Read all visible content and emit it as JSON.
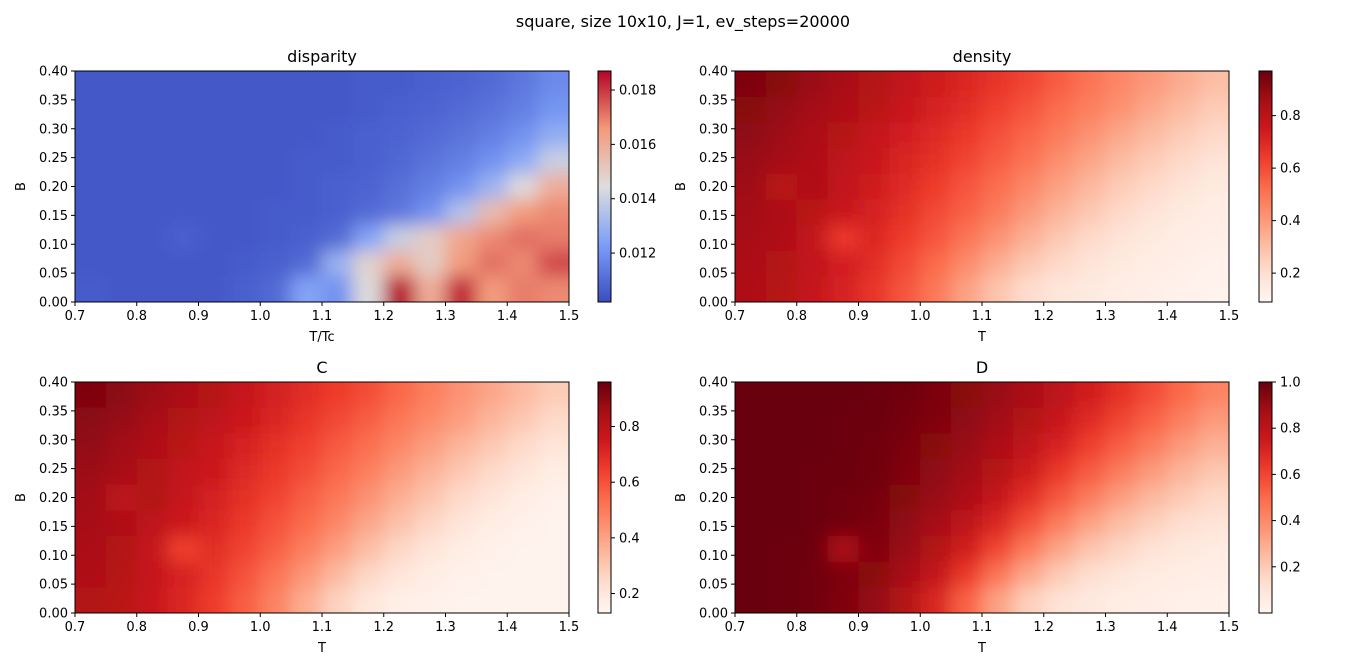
{
  "suptitle": "square, size 10x10, J=1, ev_steps=20000",
  "chart_data": [
    {
      "type": "heatmap",
      "id": "disparity",
      "title": "disparity",
      "xlabel": "T/Tc",
      "ylabel": "B",
      "xlim": [
        0.7,
        1.5
      ],
      "ylim": [
        0.0,
        0.4
      ],
      "xticks": [
        "0.7",
        "0.8",
        "0.9",
        "1.0",
        "1.1",
        "1.2",
        "1.3",
        "1.4",
        "1.5"
      ],
      "yticks": [
        "0.00",
        "0.05",
        "0.10",
        "0.15",
        "0.20",
        "0.25",
        "0.30",
        "0.35",
        "0.40"
      ],
      "colormap": "coolwarm",
      "colorbar": {
        "vmin": 0.0102,
        "vmax": 0.0187,
        "ticks": [
          "0.012",
          "0.014",
          "0.016",
          "0.018"
        ]
      },
      "description_grid_rows_top_to_bottom": "B from 0.40 down to 0.00, T/Tc from 0.7 to 1.5",
      "values": [
        [
          0.0105,
          0.0105,
          0.0105,
          0.0105,
          0.0105,
          0.0105,
          0.0105,
          0.0105,
          0.0105,
          0.0106,
          0.0106,
          0.0107,
          0.0108,
          0.011,
          0.0113,
          0.0118
        ],
        [
          0.0105,
          0.0105,
          0.0105,
          0.0105,
          0.0105,
          0.0105,
          0.0105,
          0.0105,
          0.0105,
          0.0106,
          0.0107,
          0.0108,
          0.011,
          0.0112,
          0.0115,
          0.0121
        ],
        [
          0.0105,
          0.0105,
          0.0105,
          0.0105,
          0.0105,
          0.0105,
          0.0105,
          0.0105,
          0.0106,
          0.0107,
          0.0108,
          0.011,
          0.0112,
          0.0115,
          0.012,
          0.0128
        ],
        [
          0.0105,
          0.0105,
          0.0105,
          0.0105,
          0.0105,
          0.0105,
          0.0105,
          0.0106,
          0.0106,
          0.0107,
          0.0109,
          0.0112,
          0.0115,
          0.012,
          0.0127,
          0.014
        ],
        [
          0.0105,
          0.0105,
          0.0105,
          0.0105,
          0.0105,
          0.0105,
          0.0105,
          0.0106,
          0.0107,
          0.0108,
          0.0111,
          0.0115,
          0.012,
          0.013,
          0.0145,
          0.016
        ],
        [
          0.0105,
          0.0105,
          0.0105,
          0.0105,
          0.0105,
          0.0105,
          0.0106,
          0.0106,
          0.0107,
          0.011,
          0.0113,
          0.012,
          0.0135,
          0.0155,
          0.0165,
          0.0168
        ],
        [
          0.0105,
          0.0105,
          0.0105,
          0.0107,
          0.0105,
          0.0105,
          0.0106,
          0.0107,
          0.011,
          0.0125,
          0.014,
          0.015,
          0.0162,
          0.0168,
          0.0172,
          0.017
        ],
        [
          0.0105,
          0.0105,
          0.0105,
          0.0105,
          0.0105,
          0.0106,
          0.0107,
          0.011,
          0.013,
          0.0148,
          0.016,
          0.015,
          0.0165,
          0.0172,
          0.0168,
          0.0178
        ],
        [
          0.0106,
          0.0105,
          0.0105,
          0.0105,
          0.0105,
          0.0107,
          0.011,
          0.0125,
          0.012,
          0.0145,
          0.0187,
          0.016,
          0.0183,
          0.0165,
          0.017,
          0.0168
        ]
      ]
    },
    {
      "type": "heatmap",
      "id": "density",
      "title": "density",
      "xlabel": "T",
      "ylabel": "B",
      "xlim": [
        0.7,
        1.5
      ],
      "ylim": [
        0.0,
        0.4
      ],
      "xticks": [
        "0.7",
        "0.8",
        "0.9",
        "1.0",
        "1.1",
        "1.2",
        "1.3",
        "1.4",
        "1.5"
      ],
      "yticks": [
        "0.00",
        "0.05",
        "0.10",
        "0.15",
        "0.20",
        "0.25",
        "0.30",
        "0.35",
        "0.40"
      ],
      "colormap": "Reds",
      "colorbar": {
        "vmin": 0.09,
        "vmax": 0.97,
        "ticks": [
          "0.2",
          "0.4",
          "0.6",
          "0.8"
        ]
      },
      "values": [
        [
          0.93,
          0.91,
          0.88,
          0.85,
          0.82,
          0.78,
          0.74,
          0.7,
          0.66,
          0.62,
          0.56,
          0.5,
          0.45,
          0.4,
          0.35,
          0.3
        ],
        [
          0.91,
          0.89,
          0.86,
          0.83,
          0.8,
          0.76,
          0.72,
          0.68,
          0.63,
          0.58,
          0.52,
          0.47,
          0.42,
          0.36,
          0.31,
          0.26
        ],
        [
          0.9,
          0.87,
          0.84,
          0.81,
          0.77,
          0.73,
          0.69,
          0.65,
          0.59,
          0.54,
          0.48,
          0.42,
          0.36,
          0.31,
          0.26,
          0.22
        ],
        [
          0.88,
          0.86,
          0.83,
          0.79,
          0.76,
          0.71,
          0.67,
          0.62,
          0.56,
          0.5,
          0.43,
          0.37,
          0.31,
          0.26,
          0.22,
          0.18
        ],
        [
          0.87,
          0.8,
          0.83,
          0.78,
          0.74,
          0.69,
          0.64,
          0.58,
          0.52,
          0.45,
          0.38,
          0.32,
          0.26,
          0.22,
          0.18,
          0.15
        ],
        [
          0.86,
          0.84,
          0.8,
          0.76,
          0.72,
          0.67,
          0.61,
          0.55,
          0.48,
          0.4,
          0.33,
          0.27,
          0.22,
          0.18,
          0.15,
          0.13
        ],
        [
          0.85,
          0.83,
          0.78,
          0.65,
          0.7,
          0.64,
          0.58,
          0.5,
          0.42,
          0.34,
          0.27,
          0.22,
          0.18,
          0.15,
          0.13,
          0.12
        ],
        [
          0.84,
          0.82,
          0.78,
          0.73,
          0.68,
          0.61,
          0.53,
          0.44,
          0.35,
          0.27,
          0.22,
          0.18,
          0.15,
          0.13,
          0.12,
          0.11
        ],
        [
          0.83,
          0.81,
          0.77,
          0.72,
          0.66,
          0.58,
          0.49,
          0.38,
          0.28,
          0.21,
          0.17,
          0.15,
          0.13,
          0.12,
          0.11,
          0.1
        ]
      ]
    },
    {
      "type": "heatmap",
      "id": "C",
      "title": "C",
      "xlabel": "T",
      "ylabel": "B",
      "xlim": [
        0.7,
        1.5
      ],
      "ylim": [
        0.0,
        0.4
      ],
      "xticks": [
        "0.7",
        "0.8",
        "0.9",
        "1.0",
        "1.1",
        "1.2",
        "1.3",
        "1.4",
        "1.5"
      ],
      "yticks": [
        "0.00",
        "0.05",
        "0.10",
        "0.15",
        "0.20",
        "0.25",
        "0.30",
        "0.35",
        "0.40"
      ],
      "colormap": "Reds",
      "colorbar": {
        "vmin": 0.13,
        "vmax": 0.96,
        "ticks": [
          "0.2",
          "0.4",
          "0.6",
          "0.8"
        ]
      },
      "values": [
        [
          0.92,
          0.9,
          0.87,
          0.84,
          0.81,
          0.77,
          0.73,
          0.69,
          0.65,
          0.61,
          0.55,
          0.49,
          0.44,
          0.39,
          0.34,
          0.29
        ],
        [
          0.9,
          0.88,
          0.85,
          0.82,
          0.79,
          0.75,
          0.71,
          0.67,
          0.62,
          0.57,
          0.51,
          0.46,
          0.41,
          0.35,
          0.3,
          0.25
        ],
        [
          0.89,
          0.86,
          0.83,
          0.8,
          0.76,
          0.72,
          0.68,
          0.64,
          0.58,
          0.53,
          0.47,
          0.41,
          0.35,
          0.3,
          0.25,
          0.21
        ],
        [
          0.87,
          0.85,
          0.82,
          0.78,
          0.75,
          0.7,
          0.66,
          0.61,
          0.55,
          0.49,
          0.42,
          0.36,
          0.3,
          0.25,
          0.21,
          0.17
        ],
        [
          0.86,
          0.79,
          0.82,
          0.77,
          0.73,
          0.68,
          0.63,
          0.57,
          0.51,
          0.44,
          0.37,
          0.31,
          0.25,
          0.21,
          0.17,
          0.15
        ],
        [
          0.85,
          0.83,
          0.79,
          0.75,
          0.71,
          0.66,
          0.6,
          0.54,
          0.47,
          0.39,
          0.32,
          0.26,
          0.21,
          0.17,
          0.15,
          0.14
        ],
        [
          0.84,
          0.82,
          0.77,
          0.64,
          0.69,
          0.63,
          0.57,
          0.49,
          0.41,
          0.33,
          0.26,
          0.21,
          0.17,
          0.15,
          0.14,
          0.14
        ],
        [
          0.83,
          0.81,
          0.77,
          0.72,
          0.67,
          0.6,
          0.52,
          0.43,
          0.34,
          0.26,
          0.21,
          0.17,
          0.15,
          0.14,
          0.14,
          0.14
        ],
        [
          0.82,
          0.8,
          0.76,
          0.71,
          0.65,
          0.57,
          0.48,
          0.37,
          0.27,
          0.2,
          0.16,
          0.15,
          0.14,
          0.14,
          0.14,
          0.14
        ]
      ]
    },
    {
      "type": "heatmap",
      "id": "D",
      "title": "D",
      "xlabel": "T",
      "ylabel": "B",
      "xlim": [
        0.7,
        1.5
      ],
      "ylim": [
        0.0,
        0.4
      ],
      "xticks": [
        "0.7",
        "0.8",
        "0.9",
        "1.0",
        "1.1",
        "1.2",
        "1.3",
        "1.4",
        "1.5"
      ],
      "yticks": [
        "0.00",
        "0.05",
        "0.10",
        "0.15",
        "0.20",
        "0.25",
        "0.30",
        "0.35",
        "0.40"
      ],
      "colormap": "Reds",
      "colorbar": {
        "vmin": 0.0,
        "vmax": 1.0,
        "ticks": [
          "0.2",
          "0.4",
          "0.6",
          "0.8",
          "1.0"
        ]
      },
      "values": [
        [
          1.0,
          1.0,
          1.0,
          1.0,
          0.99,
          0.98,
          0.96,
          0.93,
          0.9,
          0.86,
          0.8,
          0.73,
          0.66,
          0.58,
          0.5,
          0.42
        ],
        [
          1.0,
          1.0,
          1.0,
          0.99,
          0.99,
          0.97,
          0.95,
          0.92,
          0.88,
          0.83,
          0.76,
          0.68,
          0.6,
          0.52,
          0.43,
          0.35
        ],
        [
          1.0,
          1.0,
          1.0,
          0.99,
          0.98,
          0.96,
          0.93,
          0.9,
          0.85,
          0.79,
          0.71,
          0.62,
          0.53,
          0.44,
          0.35,
          0.28
        ],
        [
          1.0,
          1.0,
          0.99,
          0.99,
          0.98,
          0.95,
          0.92,
          0.88,
          0.82,
          0.74,
          0.64,
          0.54,
          0.44,
          0.35,
          0.27,
          0.21
        ],
        [
          1.0,
          1.0,
          0.99,
          0.98,
          0.97,
          0.94,
          0.9,
          0.85,
          0.77,
          0.67,
          0.55,
          0.44,
          0.34,
          0.26,
          0.2,
          0.15
        ],
        [
          1.0,
          1.0,
          0.99,
          0.98,
          0.96,
          0.92,
          0.87,
          0.8,
          0.7,
          0.57,
          0.44,
          0.33,
          0.24,
          0.18,
          0.13,
          0.1
        ],
        [
          1.0,
          0.99,
          0.99,
          0.85,
          0.95,
          0.9,
          0.83,
          0.73,
          0.6,
          0.45,
          0.32,
          0.22,
          0.16,
          0.11,
          0.08,
          0.06
        ],
        [
          1.0,
          0.99,
          0.98,
          0.96,
          0.93,
          0.87,
          0.78,
          0.64,
          0.47,
          0.31,
          0.2,
          0.13,
          0.09,
          0.06,
          0.05,
          0.04
        ],
        [
          1.0,
          0.99,
          0.98,
          0.95,
          0.91,
          0.83,
          0.7,
          0.52,
          0.33,
          0.18,
          0.11,
          0.07,
          0.05,
          0.04,
          0.03,
          0.02
        ]
      ]
    }
  ]
}
